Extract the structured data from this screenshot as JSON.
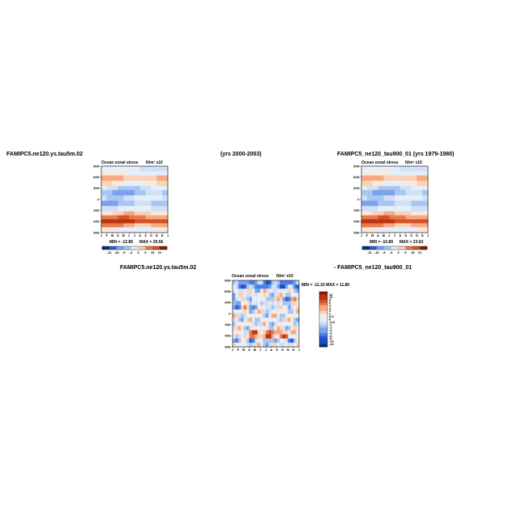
{
  "titles": {
    "left_top": "FAMIPC5.ne120.ys.tau5m.02",
    "center_top": "(yrs 2000-2003)",
    "right_top": "FAMIPC5_ne120_tau900_01 (yrs 1979-1980)",
    "diff_left": "FAMIPC5.ne120.ys.tau5m.02",
    "diff_right": "- FAMIPC5_ne120_tau900_01"
  },
  "colors": {
    "neg_strong": "#2a5fd6",
    "neg_light": "#cfe0f7",
    "pos_light": "#f9d2b8",
    "pos_strong": "#b83512"
  },
  "chart_data": [
    {
      "type": "heatmap",
      "title": "Ocean zonal stress",
      "units": "N/m² x10",
      "x_ticks": [
        "J",
        "F",
        "M",
        "A",
        "M",
        "J",
        "J",
        "A",
        "S",
        "O",
        "N",
        "D",
        "J"
      ],
      "y_ticks": [
        "90N",
        "60N",
        "30N",
        "0",
        "30S",
        "60S",
        "90S"
      ],
      "min_label": "MIN = -12.89",
      "max_label": "MAX = 29.56",
      "colorbar_ticks": [
        "-21",
        "-15",
        "-9",
        "-3",
        "3",
        "9",
        "15",
        "21"
      ],
      "legend_position": "bottom"
    },
    {
      "type": "heatmap",
      "title": "Ocean zonal stress",
      "units": "N/m² x10",
      "x_ticks": [
        "J",
        "F",
        "M",
        "A",
        "M",
        "J",
        "J",
        "A",
        "S",
        "O",
        "N",
        "D",
        "J"
      ],
      "y_ticks": [
        "90N",
        "60N",
        "30N",
        "0",
        "30S",
        "60S",
        "90S"
      ],
      "min_label": "MIN = -10.89",
      "max_label": "MAX = 23.63",
      "colorbar_ticks": [
        "-21",
        "-15",
        "-9",
        "-3",
        "3",
        "9",
        "15",
        "21"
      ],
      "legend_position": "bottom"
    },
    {
      "type": "heatmap",
      "title": "Ocean zonal stress",
      "units": "N/m² x10",
      "x_ticks": [
        "J",
        "F",
        "M",
        "A",
        "M",
        "J",
        "J",
        "A",
        "S",
        "O",
        "N",
        "D",
        "J"
      ],
      "y_ticks": [
        "90N",
        "60N",
        "30N",
        "0",
        "30S",
        "60S",
        "90S"
      ],
      "minmax_label": "MIN = -11.15 MAX = 11.86",
      "colorbar_ticks": [
        "12",
        "10",
        "8",
        "6",
        "4",
        "3",
        "2",
        "1",
        "0.5",
        "0",
        "-0.5",
        "-1",
        "-2",
        "-3",
        "-4",
        "-6",
        "-8",
        "-10",
        "-12"
      ],
      "legend_position": "right"
    }
  ]
}
